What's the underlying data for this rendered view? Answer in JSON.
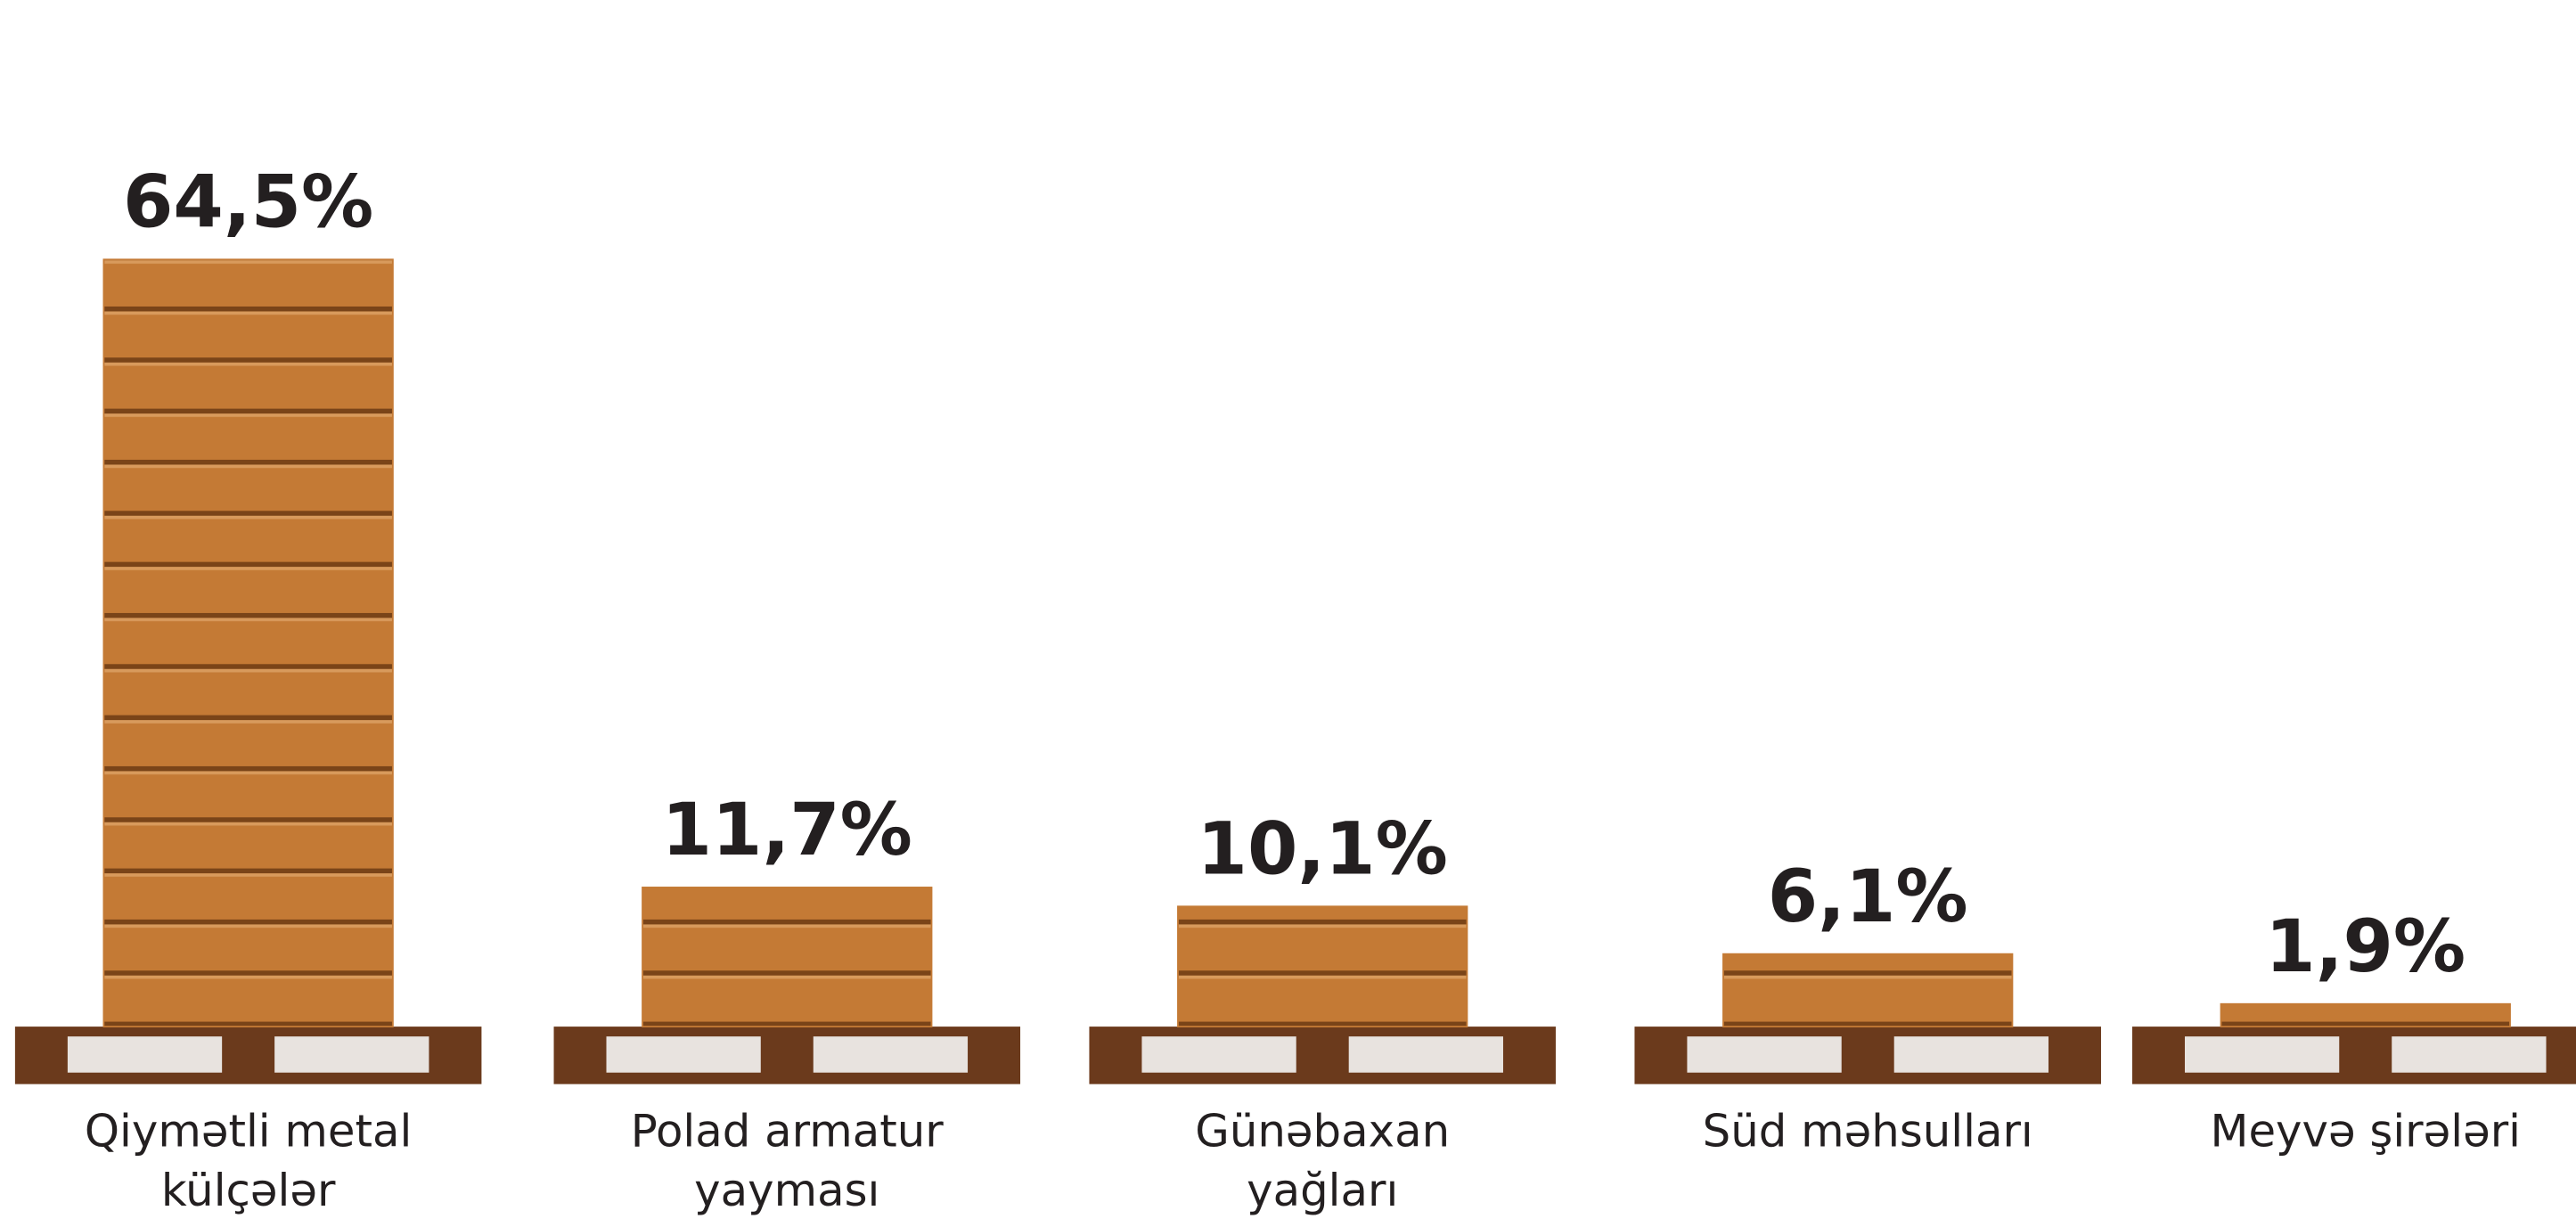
{
  "chart_data": {
    "type": "bar",
    "categories": [
      "Qiymətli metal külçələr",
      "Polad armatur yayması",
      "Günəbaxan yağları",
      "Süd məhsulları",
      "Meyvə şirələri"
    ],
    "values": [
      64.5,
      11.7,
      10.1,
      6.1,
      1.9
    ],
    "value_labels": [
      "64,5%",
      "11,7%",
      "10,1%",
      "6,1%",
      "1,9%"
    ],
    "color": "#c47a35"
  }
}
